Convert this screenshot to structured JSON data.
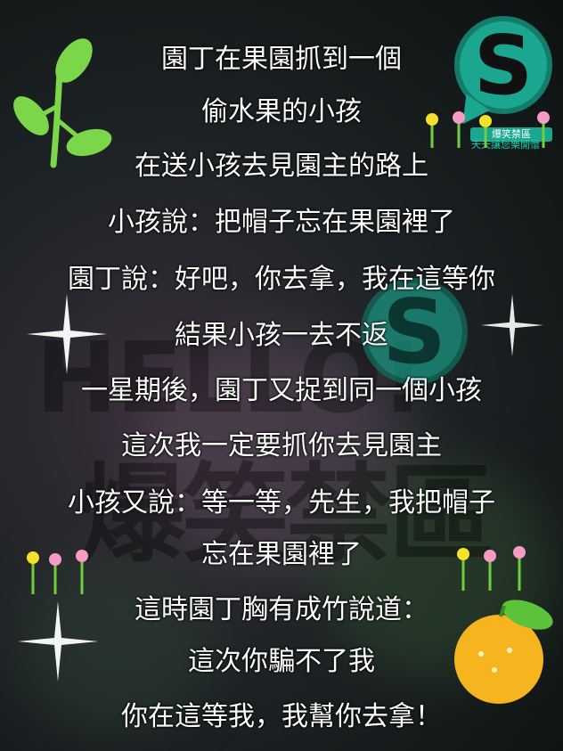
{
  "lines": [
    "園丁在果園抓到一個",
    "偷水果的小孩",
    "在送小孩去見園主的路上",
    "小孩說：把帽子忘在果園裡了",
    "園丁說：好吧，你去拿，我在這等你",
    "結果小孩一去不返",
    "一星期後，園丁又捉到同一個小孩",
    "這次我一定要抓你去見園主",
    "小孩又說：等一等，先生，我把帽子",
    "忘在果園裡了",
    "這時園丁胸有成竹說道：",
    "這次你騙不了我",
    "你在這等我，我幫你去拿！"
  ],
  "logo": {
    "letter": "S",
    "sign_text": "爆笑禁區",
    "tagline": "天天讓您樂開懷"
  },
  "watermark": {
    "hello": "HELLO!",
    "big": "爆笑禁區"
  },
  "colors": {
    "text": "#ffffff",
    "brand": "#1aa68f",
    "leaf": "#7cd64a",
    "orange": "#f6b51e"
  },
  "icons": [
    "leaf-sprig-icon",
    "s-logo-icon",
    "flowers-icon",
    "sparkle-icon",
    "orange-fruit-icon"
  ]
}
